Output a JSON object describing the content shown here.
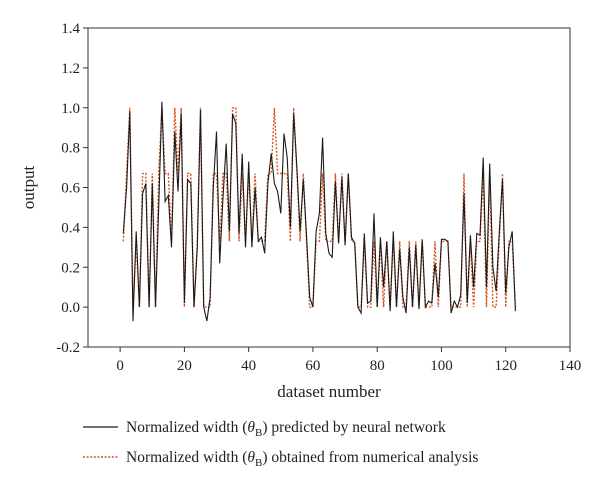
{
  "chart_data": {
    "type": "line",
    "xlabel": "dataset number",
    "ylabel": "output",
    "xlim": [
      -10,
      140
    ],
    "ylim": [
      -0.2,
      1.4
    ],
    "xticks": [
      0,
      20,
      40,
      60,
      80,
      100,
      120,
      140
    ],
    "yticks": [
      -0.2,
      0.0,
      0.2,
      0.4,
      0.6,
      0.8,
      1.0,
      1.2,
      1.4
    ],
    "ytick_labels": [
      "-0.2",
      "0.0",
      "0.2",
      "0.4",
      "0.6",
      "0.8",
      "1.0",
      "1.2",
      "1.4"
    ],
    "grid": false,
    "legend_position": "bottom",
    "series": [
      {
        "name_prefix": "Normalized width (",
        "name_symbol": "θ",
        "name_subscript": "B",
        "name_suffix": ") predicted by neural network",
        "color": "#1a1a1a",
        "style": "solid",
        "x": [
          1,
          2,
          3,
          4,
          5,
          6,
          7,
          8,
          9,
          10,
          11,
          12,
          13,
          14,
          15,
          16,
          17,
          18,
          19,
          20,
          21,
          22,
          23,
          24,
          25,
          26,
          27,
          28,
          29,
          30,
          31,
          32,
          33,
          34,
          35,
          36,
          37,
          38,
          39,
          40,
          41,
          42,
          43,
          44,
          45,
          46,
          47,
          48,
          49,
          50,
          51,
          52,
          53,
          54,
          55,
          56,
          57,
          58,
          59,
          60,
          61,
          62,
          63,
          64,
          65,
          66,
          67,
          68,
          69,
          70,
          71,
          72,
          73,
          74,
          75,
          76,
          77,
          78,
          79,
          80,
          81,
          82,
          83,
          84,
          85,
          86,
          87,
          88,
          89,
          90,
          91,
          92,
          93,
          94,
          95,
          96,
          97,
          98,
          99,
          100,
          101,
          102,
          103,
          104,
          105,
          106,
          107,
          108,
          109,
          110,
          111,
          112,
          113,
          114,
          115,
          116,
          117,
          118,
          119,
          120,
          121,
          122,
          123
        ],
        "y": [
          0.37,
          0.6,
          0.98,
          -0.07,
          0.38,
          0.0,
          0.57,
          0.62,
          0.0,
          0.62,
          0.0,
          0.5,
          1.03,
          0.53,
          0.56,
          0.3,
          0.88,
          0.58,
          0.97,
          0.02,
          0.64,
          0.62,
          0.0,
          0.3,
          0.99,
          0.0,
          -0.07,
          0.05,
          0.6,
          0.88,
          0.22,
          0.55,
          0.82,
          0.38,
          0.97,
          0.92,
          0.37,
          0.77,
          0.3,
          0.73,
          0.3,
          0.6,
          0.33,
          0.35,
          0.27,
          0.62,
          0.77,
          0.62,
          0.58,
          0.47,
          0.87,
          0.75,
          0.4,
          0.97,
          0.7,
          0.38,
          0.64,
          0.36,
          0.05,
          0.0,
          0.38,
          0.47,
          0.85,
          0.37,
          0.27,
          0.25,
          0.63,
          0.32,
          0.65,
          0.31,
          0.67,
          0.35,
          0.32,
          0.0,
          -0.03,
          0.37,
          0.02,
          0.03,
          0.47,
          0.0,
          0.35,
          0.1,
          0.33,
          -0.02,
          0.38,
          0.0,
          0.29,
          0.05,
          -0.03,
          0.3,
          0.0,
          0.31,
          -0.01,
          0.34,
          0.0,
          0.03,
          0.02,
          0.22,
          0.05,
          0.34,
          0.34,
          0.33,
          -0.03,
          0.03,
          0.0,
          0.06,
          0.57,
          0.02,
          0.36,
          0.1,
          0.37,
          0.36,
          0.75,
          0.1,
          0.72,
          0.2,
          0.08,
          0.38,
          0.64,
          0.07,
          0.3,
          0.38,
          -0.02
        ]
      },
      {
        "name_prefix": "Normalized width (",
        "name_symbol": "θ",
        "name_subscript": "B",
        "name_suffix": ") obtained from numerical analysis",
        "color": "#d9531e",
        "style": "dotted",
        "x": [
          1,
          2,
          3,
          4,
          5,
          6,
          7,
          8,
          9,
          10,
          11,
          12,
          13,
          14,
          15,
          16,
          17,
          18,
          19,
          20,
          21,
          22,
          23,
          24,
          25,
          26,
          27,
          28,
          29,
          30,
          31,
          32,
          33,
          34,
          35,
          36,
          37,
          38,
          39,
          40,
          41,
          42,
          43,
          44,
          45,
          46,
          47,
          48,
          49,
          50,
          51,
          52,
          53,
          54,
          55,
          56,
          57,
          58,
          59,
          60,
          61,
          62,
          63,
          64,
          65,
          66,
          67,
          68,
          69,
          70,
          71,
          72,
          73,
          74,
          75,
          76,
          77,
          78,
          79,
          80,
          81,
          82,
          83,
          84,
          85,
          86,
          87,
          88,
          89,
          90,
          91,
          92,
          93,
          94,
          95,
          96,
          97,
          98,
          99,
          100,
          101,
          102,
          103,
          104,
          105,
          106,
          107,
          108,
          109,
          110,
          111,
          112,
          113,
          114,
          115,
          116,
          117,
          118,
          119,
          120,
          121,
          122,
          123
        ],
        "y": [
          0.33,
          0.67,
          1.0,
          0.0,
          0.33,
          0.0,
          0.67,
          0.67,
          0.0,
          0.67,
          0.0,
          0.67,
          1.0,
          0.67,
          0.67,
          0.33,
          1.0,
          0.67,
          1.0,
          0.0,
          0.67,
          0.67,
          0.0,
          0.33,
          1.0,
          0.0,
          0.0,
          0.0,
          0.67,
          0.67,
          0.33,
          0.67,
          0.67,
          0.33,
          1.0,
          1.0,
          0.33,
          0.67,
          0.33,
          0.67,
          0.33,
          0.67,
          0.33,
          0.33,
          0.33,
          0.67,
          0.67,
          1.0,
          0.67,
          0.67,
          0.67,
          0.67,
          0.33,
          1.0,
          0.67,
          0.33,
          0.67,
          0.33,
          0.0,
          0.0,
          0.33,
          0.33,
          0.67,
          0.33,
          0.33,
          0.33,
          0.67,
          0.33,
          0.67,
          0.33,
          0.67,
          0.33,
          0.33,
          0.0,
          0.0,
          0.33,
          0.0,
          0.0,
          0.33,
          0.0,
          0.33,
          0.0,
          0.33,
          0.0,
          0.33,
          0.0,
          0.33,
          0.0,
          0.0,
          0.33,
          0.0,
          0.33,
          0.0,
          0.33,
          0.0,
          0.0,
          0.0,
          0.33,
          0.0,
          0.33,
          0.33,
          0.33,
          0.0,
          0.0,
          0.0,
          0.0,
          0.67,
          0.0,
          0.33,
          0.0,
          0.33,
          0.33,
          0.67,
          0.0,
          0.67,
          0.0,
          0.0,
          0.33,
          0.67,
          0.0,
          0.33,
          0.33,
          0.0
        ]
      }
    ]
  }
}
